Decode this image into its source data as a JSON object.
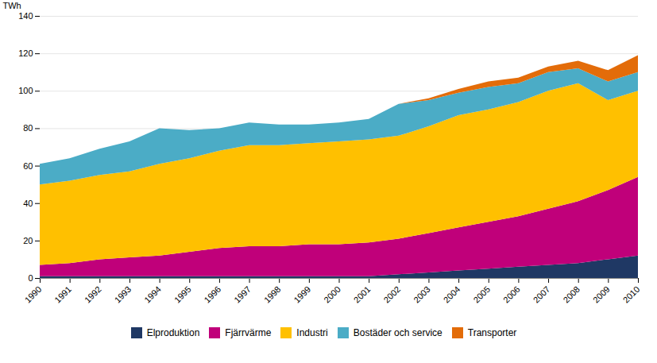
{
  "chart_data": {
    "type": "area",
    "stacked": true,
    "x": [
      1990,
      1991,
      1992,
      1993,
      1994,
      1995,
      1996,
      1997,
      1998,
      1999,
      2000,
      2001,
      2002,
      2003,
      2004,
      2005,
      2006,
      2007,
      2008,
      2009,
      2010
    ],
    "xlim": [
      1990,
      2010
    ],
    "xticks": [
      1990,
      1991,
      1992,
      1993,
      1994,
      1995,
      1996,
      1997,
      1998,
      1999,
      2000,
      2001,
      2002,
      2003,
      2004,
      2005,
      2006,
      2007,
      2008,
      2009,
      2010
    ],
    "ylabel": "TWh",
    "ylim": [
      0,
      140
    ],
    "yticks": [
      0,
      20,
      40,
      60,
      80,
      100,
      120,
      140
    ],
    "grid": true,
    "legend": "bottom",
    "series": [
      {
        "name": "Elproduktion",
        "color": "#1F3864",
        "values": [
          1,
          1,
          1,
          1,
          1,
          1,
          1,
          1,
          1,
          1,
          1,
          1,
          2,
          3,
          4,
          5,
          6,
          7,
          8,
          10,
          12
        ]
      },
      {
        "name": "Fjärrvärme",
        "color": "#C0007A",
        "values": [
          6,
          7,
          9,
          10,
          11,
          13,
          15,
          16,
          16,
          17,
          17,
          18,
          19,
          21,
          23,
          25,
          27,
          30,
          33,
          37,
          42
        ]
      },
      {
        "name": "Industri",
        "color": "#FFC000",
        "values": [
          43,
          44,
          45,
          46,
          49,
          50,
          52,
          54,
          54,
          54,
          55,
          55,
          55,
          57,
          60,
          60,
          61,
          63,
          63,
          48,
          46
        ]
      },
      {
        "name": "Bostäder och service",
        "color": "#4BACC6",
        "values": [
          11,
          12,
          14,
          16,
          19,
          15,
          12,
          12,
          11,
          10,
          10,
          11,
          17,
          14,
          12,
          12,
          10,
          10,
          8,
          10,
          10
        ]
      },
      {
        "name": "Transporter",
        "color": "#E36C09",
        "values": [
          0,
          0,
          0,
          0,
          0,
          0,
          0,
          0,
          0,
          0,
          0,
          0,
          0,
          1,
          2,
          3,
          3,
          3,
          4,
          6,
          9
        ]
      }
    ]
  }
}
